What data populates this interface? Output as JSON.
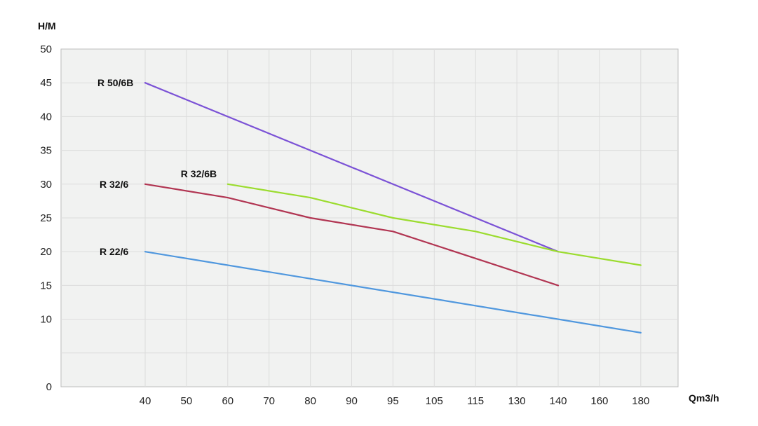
{
  "chart_data": {
    "type": "line",
    "title": "",
    "xlabel": "Qm3/h",
    "ylabel": "H/M",
    "x_ticks": [
      "40",
      "50",
      "60",
      "70",
      "80",
      "90",
      "95",
      "105",
      "115",
      "130",
      "140",
      "160",
      "180"
    ],
    "y_ticks": [
      "0",
      "10",
      "15",
      "20",
      "25",
      "30",
      "35",
      "40",
      "45",
      "50"
    ],
    "ylim": [
      0,
      50
    ],
    "grid": true,
    "legend": "inline labels at the left end of each line",
    "series": [
      {
        "name": "R 50/6B",
        "color": "#7b52d6",
        "points": [
          {
            "x": "40",
            "y": 45
          },
          {
            "x": "140",
            "y": 20
          }
        ]
      },
      {
        "name": "R 32/6B",
        "color": "#9bdc2e",
        "points": [
          {
            "x": "60",
            "y": 30
          },
          {
            "x": "80",
            "y": 28
          },
          {
            "x": "95",
            "y": 25
          },
          {
            "x": "115",
            "y": 23
          },
          {
            "x": "140",
            "y": 20
          },
          {
            "x": "180",
            "y": 18
          }
        ]
      },
      {
        "name": "R 32/6",
        "color": "#b13552",
        "points": [
          {
            "x": "40",
            "y": 30
          },
          {
            "x": "60",
            "y": 28
          },
          {
            "x": "80",
            "y": 25
          },
          {
            "x": "95",
            "y": 23
          },
          {
            "x": "140",
            "y": 15
          }
        ]
      },
      {
        "name": "R 22/6",
        "color": "#4f97de",
        "points": [
          {
            "x": "40",
            "y": 20
          },
          {
            "x": "180",
            "y": 8
          }
        ]
      }
    ]
  }
}
